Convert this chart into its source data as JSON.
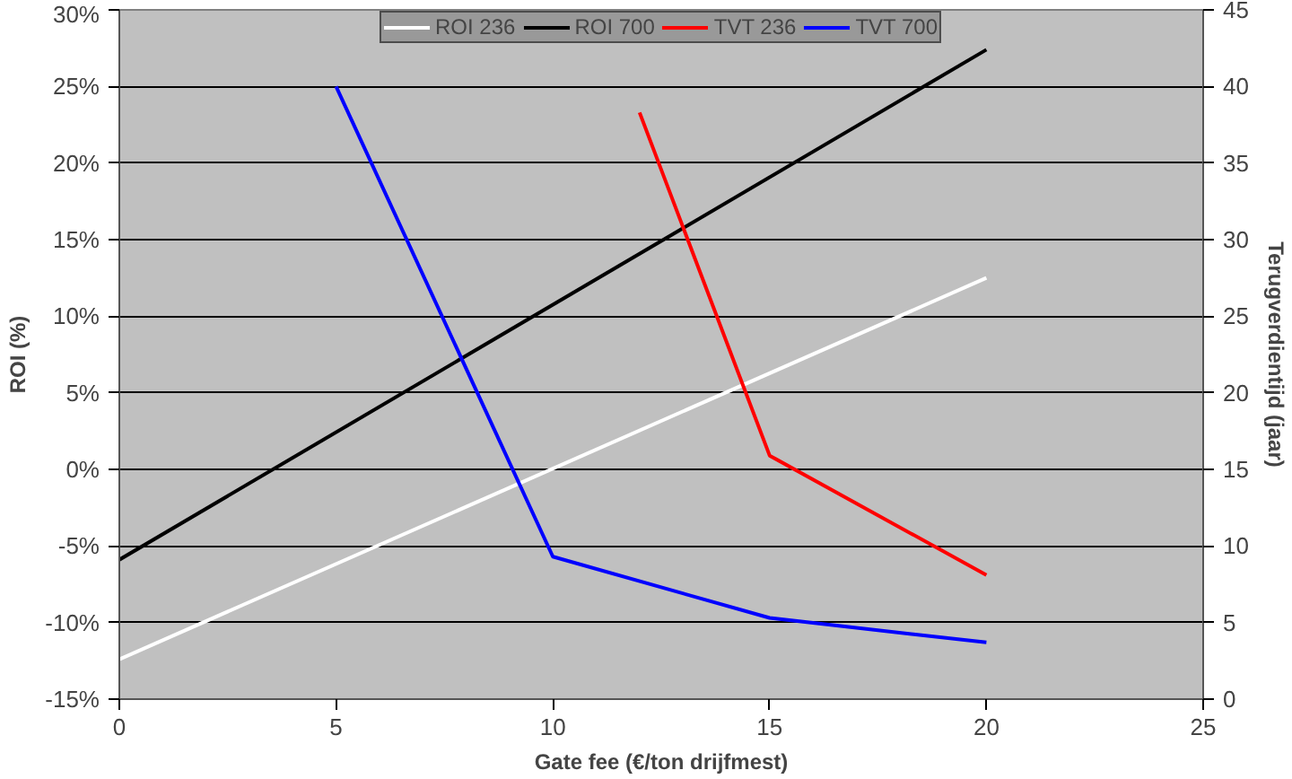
{
  "chart_data": {
    "type": "line",
    "xlabel": "Gate fee (€/ton drijfmest)",
    "ylabel": "ROI (%)",
    "y2label": "Terugverdientijd (jaar)",
    "xlim": [
      0,
      25
    ],
    "xticks": [
      0,
      5,
      10,
      15,
      20,
      25
    ],
    "ylim": [
      -15,
      30
    ],
    "yticks": [
      {
        "value": -15,
        "label": "-15%"
      },
      {
        "value": -10,
        "label": "-10%"
      },
      {
        "value": -5,
        "label": "-5%"
      },
      {
        "value": 0,
        "label": "0%"
      },
      {
        "value": 5,
        "label": "5%"
      },
      {
        "value": 10,
        "label": "10%"
      },
      {
        "value": 15,
        "label": "15%"
      },
      {
        "value": 20,
        "label": "20%"
      },
      {
        "value": 25,
        "label": "25%"
      },
      {
        "value": 30,
        "label": "30%"
      }
    ],
    "y2lim": [
      0,
      45
    ],
    "y2ticks": [
      0,
      5,
      10,
      15,
      20,
      25,
      30,
      35,
      40,
      45
    ],
    "grid": "y",
    "legend": "top",
    "series": [
      {
        "name": "ROI 236",
        "color": "#ffffff",
        "x": [
          0,
          20
        ],
        "values": [
          -12.4,
          12.5
        ]
      },
      {
        "name": "ROI 700",
        "color": "#000000",
        "x": [
          0,
          20
        ],
        "values": [
          -5.9,
          27.4
        ]
      },
      {
        "name": "TVT 236",
        "color": "#ff0000",
        "axis": "y2",
        "x": [
          12,
          15,
          20
        ],
        "values": [
          38.3,
          15.9,
          8.1
        ]
      },
      {
        "name": "TVT 700",
        "color": "#0000ff",
        "axis": "y2",
        "x": [
          5,
          10,
          15,
          20
        ],
        "values": [
          40.0,
          9.3,
          5.3,
          3.7
        ]
      }
    ]
  }
}
